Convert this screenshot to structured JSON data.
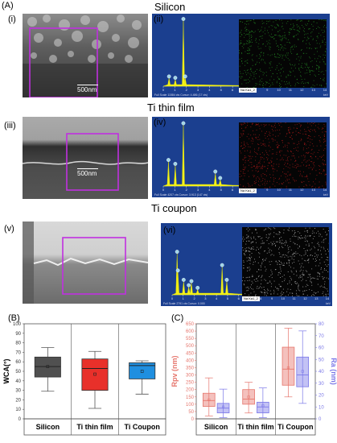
{
  "panel_labels": {
    "A": "(A)",
    "B": "(B)",
    "C": "(C)"
  },
  "row_titles": {
    "silicon": "Silicon",
    "ti_film": "Ti thin film",
    "ti_coupon": "Ti coupon"
  },
  "sub_labels": {
    "i": "(i)",
    "ii": "(ii)",
    "iii": "(iii)",
    "iv": "(iv)",
    "v": "(v)",
    "vi": "(vi)"
  },
  "scale_bar": "500nm",
  "eds": [
    {
      "map_label": "Na Ka1_2",
      "map_color": "#2aa02a",
      "status": "Full Scale 11584 cts Cursor: 4.486 (17 cts)",
      "peaks": [
        [
          0.5,
          0.12
        ],
        [
          1.04,
          0.1
        ],
        [
          1.74,
          0.97
        ],
        [
          1.9,
          0.12
        ]
      ]
    },
    {
      "map_label": "Na Ka1_2",
      "map_color": "#c81e1e",
      "status": "Full Scale 4207 cts Cursor: 3.913 (147 cts)",
      "peaks": [
        [
          0.45,
          0.38
        ],
        [
          1.04,
          0.32
        ],
        [
          1.74,
          0.95
        ],
        [
          4.51,
          0.2
        ],
        [
          4.93,
          0.1
        ]
      ]
    },
    {
      "map_label": "Na Ka1_2",
      "map_color": "#d8d8d8",
      "status": "Full Scale 2791 cts Cursor: 0.000",
      "peaks": [
        [
          0.45,
          0.62
        ],
        [
          0.52,
          0.34
        ],
        [
          1.04,
          0.2
        ],
        [
          1.5,
          0.12
        ],
        [
          1.74,
          0.18
        ],
        [
          2.3,
          0.08
        ],
        [
          4.51,
          0.42
        ],
        [
          4.93,
          0.2
        ]
      ]
    }
  ],
  "eds_ticks": [
    "0",
    "1",
    "2",
    "3",
    "4",
    "5",
    "6",
    "7",
    "8",
    "9",
    "10",
    "11",
    "12",
    "13",
    "14"
  ],
  "eds_unit": "keV",
  "chart_data": [
    {
      "type": "box",
      "ylabel": "WCA(°)",
      "ylim": [
        0,
        100
      ],
      "yticks": [
        "0",
        "10",
        "20",
        "30",
        "40",
        "50",
        "60",
        "70",
        "80",
        "90",
        "100"
      ],
      "categories": [
        "Silicon",
        "Ti thin film",
        "Ti Coupon"
      ],
      "colors": [
        "#505050",
        "#e8302a",
        "#1f8fe0"
      ],
      "boxes": [
        {
          "min": 29,
          "q1": 44,
          "median": 55,
          "q3": 65,
          "max": 75,
          "mean": 55
        },
        {
          "min": 11,
          "q1": 30,
          "median": 53,
          "q3": 63,
          "max": 71,
          "mean": 47
        },
        {
          "min": 26,
          "q1": 42,
          "median": 56,
          "q3": 59,
          "max": 61,
          "mean": 50
        }
      ]
    },
    {
      "type": "box",
      "ylabel": "Rpv (nm)",
      "y2label": "Ra (nm)",
      "ylim": [
        0,
        650
      ],
      "y2lim": [
        0,
        80
      ],
      "yticks": [
        "0",
        "50",
        "100",
        "150",
        "200",
        "250",
        "300",
        "350",
        "400",
        "450",
        "500",
        "550",
        "600",
        "650"
      ],
      "y2ticks": [
        "0",
        "10",
        "20",
        "30",
        "40",
        "50",
        "60",
        "70",
        "80"
      ],
      "categories": [
        "Silicon",
        "Ti thin film",
        "Ti Coupon"
      ],
      "rpv_color": "#e6766d",
      "ra_color": "#7b78e8",
      "rpv": [
        {
          "min": 20,
          "q1": 85,
          "median": 125,
          "q3": 175,
          "max": 280,
          "mean": 130
        },
        {
          "min": 40,
          "q1": 100,
          "median": 135,
          "q3": 200,
          "max": 250,
          "mean": 150
        },
        {
          "min": 150,
          "q1": 230,
          "median": 340,
          "q3": 490,
          "max": 620,
          "mean": 350
        }
      ],
      "ra": [
        {
          "min": 1,
          "q1": 5,
          "median": 9,
          "q3": 13,
          "max": 25,
          "mean": 10
        },
        {
          "min": 1,
          "q1": 5,
          "median": 10,
          "q3": 14,
          "max": 26,
          "mean": 11
        },
        {
          "min": 13,
          "q1": 27,
          "median": 37,
          "q3": 52,
          "max": 74,
          "mean": 40
        }
      ]
    }
  ]
}
